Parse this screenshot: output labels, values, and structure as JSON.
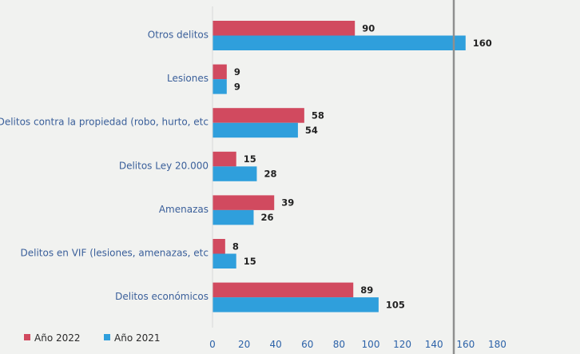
{
  "chart_data": {
    "type": "bar",
    "orientation": "horizontal",
    "categories": [
      "Otros delitos",
      "Lesiones",
      "Delitos contra la propiedad (robo, hurto, etc)",
      "Delitos Ley 20.000",
      "Amenazas",
      "Delitos en VIF (lesiones, amenazas, etc)",
      "Delitos económicos"
    ],
    "category_labels_shown": [
      "Otros delitos",
      "Lesiones",
      "Delitos contra la propiedad (robo, hurto, etc",
      "Delitos Ley 20.000",
      "Amenazas",
      "Delitos en VIF (lesiones, amenazas, etc",
      "Delitos económicos"
    ],
    "series": [
      {
        "name": "Año 2022",
        "color": "#d14a5f",
        "values": [
          90,
          9,
          58,
          15,
          39,
          8,
          89
        ]
      },
      {
        "name": "Año 2021",
        "color": "#2f9fdc",
        "values": [
          160,
          9,
          54,
          28,
          26,
          15,
          105
        ]
      }
    ],
    "x_ticks": [
      0,
      20,
      40,
      60,
      80,
      100,
      120,
      140,
      160,
      180
    ],
    "xlim": [
      0,
      180
    ],
    "grid": false,
    "legend": "bottom-left"
  }
}
